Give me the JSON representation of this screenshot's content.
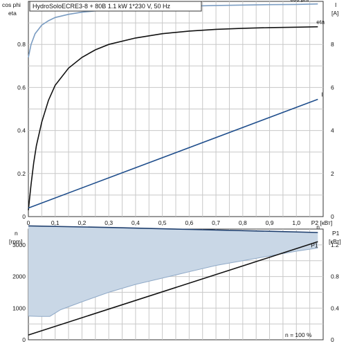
{
  "chart_data": [
    {
      "type": "line",
      "title": "HydroSoloECRE3-8 + 80B   1.1 kW   1*230 V, 50 Hz",
      "xlabel": "P2 [кВт]",
      "xlim": [
        0,
        1.1
      ],
      "x_ticks": [
        "0",
        "0,1",
        "0,2",
        "0,3",
        "0,4",
        "0,5",
        "0,6",
        "0,7",
        "0,8",
        "0,9",
        "1,0",
        "P2 [кВт]"
      ],
      "y_left_label_1": "cos phi",
      "y_left_label_2": "eta",
      "ylim_left": [
        0,
        1.0
      ],
      "y_left_ticks": [
        "0",
        "0.2",
        "0.4",
        "0.6",
        "0.8"
      ],
      "y_right_label": "I",
      "y_right_unit": "[A]",
      "ylim_right": [
        0,
        10
      ],
      "y_right_ticks": [
        "0",
        "2",
        "4",
        "6",
        "8"
      ],
      "grid": true,
      "series": [
        {
          "name": "cos phi",
          "axis": "left",
          "color": "#7a9cc2",
          "x": [
            0,
            0.01,
            0.025,
            0.05,
            0.075,
            0.1,
            0.15,
            0.2,
            0.3,
            0.4,
            0.5,
            0.6,
            0.7,
            0.8,
            0.9,
            1.0,
            1.08
          ],
          "y": [
            0.74,
            0.8,
            0.85,
            0.89,
            0.91,
            0.925,
            0.94,
            0.95,
            0.962,
            0.97,
            0.975,
            0.978,
            0.981,
            0.983,
            0.985,
            0.986,
            0.988
          ]
        },
        {
          "name": "eta",
          "axis": "left",
          "color": "#111111",
          "x": [
            0,
            0.01,
            0.02,
            0.03,
            0.05,
            0.075,
            0.1,
            0.15,
            0.2,
            0.25,
            0.3,
            0.4,
            0.5,
            0.6,
            0.7,
            0.8,
            0.9,
            1.0,
            1.08
          ],
          "y": [
            0.03,
            0.15,
            0.25,
            0.33,
            0.44,
            0.54,
            0.61,
            0.69,
            0.74,
            0.775,
            0.8,
            0.83,
            0.85,
            0.862,
            0.87,
            0.875,
            0.878,
            0.88,
            0.882
          ]
        },
        {
          "name": "I",
          "axis": "right",
          "color": "#1f4e8c",
          "x": [
            0,
            1.08
          ],
          "y": [
            0.4,
            5.45
          ]
        }
      ]
    },
    {
      "type": "area",
      "xlim": [
        0,
        1.1
      ],
      "y_left_label": "n",
      "y_left_unit": "[rpm]",
      "ylim_left": [
        0,
        3500
      ],
      "y_left_ticks": [
        "0",
        "1000",
        "2000",
        "3000"
      ],
      "y_right_label": "P1",
      "y_right_unit": "[кВт]",
      "ylim_right": [
        0,
        1.4
      ],
      "y_right_ticks": [
        "0",
        "0.4",
        "0.8",
        "1.2"
      ],
      "annotation": "n = 100 %",
      "grid": true,
      "band": {
        "fill": "#c9d7e6",
        "x": [
          0,
          0.04,
          0.08,
          0.12,
          0.2,
          0.3,
          0.4,
          0.5,
          0.6,
          0.7,
          0.8,
          0.9,
          1.0,
          1.08
        ],
        "upper": [
          3600,
          3598,
          3590,
          3583,
          3568,
          3550,
          3530,
          3510,
          3490,
          3470,
          3450,
          3430,
          3410,
          3390
        ],
        "lower": [
          750,
          740,
          740,
          950,
          1200,
          1500,
          1750,
          1950,
          2150,
          2350,
          2500,
          2650,
          2800,
          2900
        ]
      },
      "series": [
        {
          "name": "n",
          "axis": "left",
          "color": "#1f3f6e",
          "x": [
            0,
            0.3,
            0.6,
            0.9,
            1.08
          ],
          "y": [
            3600,
            3550,
            3490,
            3430,
            3390
          ]
        },
        {
          "name": "P1",
          "axis": "right",
          "color": "#111111",
          "x": [
            0,
            1.08
          ],
          "y": [
            0.06,
            1.24
          ]
        }
      ]
    }
  ]
}
